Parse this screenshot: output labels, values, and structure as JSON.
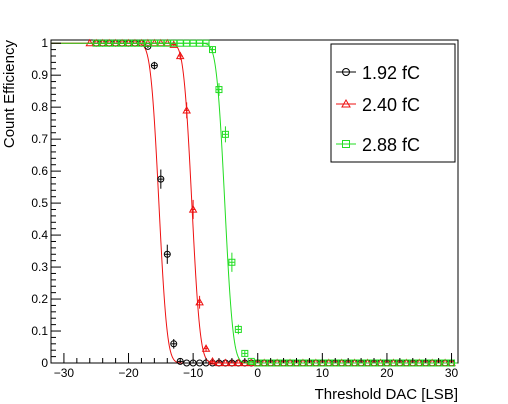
{
  "chart_data": {
    "type": "scatter",
    "xlabel": "Threshold DAC [LSB]",
    "ylabel": "Count Efficiency",
    "xlim": [
      -32,
      31
    ],
    "ylim": [
      0,
      1.01
    ],
    "xticks": [
      -30,
      -20,
      -10,
      0,
      10,
      20,
      30
    ],
    "yticks": [
      0,
      0.1,
      0.2,
      0.3,
      0.4,
      0.5,
      0.6,
      0.7,
      0.8,
      0.9,
      1
    ],
    "ytick_labels": [
      "0",
      "0.1",
      "0.2",
      "0.3",
      "0.4",
      "0.5",
      "0.6",
      "0.7",
      "0.8",
      "0.9",
      "1"
    ],
    "grid": false,
    "legend_position": "top-right",
    "series": [
      {
        "name": "1.92 fC",
        "color": "#000000",
        "marker": "circle",
        "curve_color": "#ee1111",
        "fit": {
          "mu": -15.3,
          "sigma": 1.0
        },
        "points": [
          {
            "x": -25,
            "y": 1.0,
            "err": 0
          },
          {
            "x": -24,
            "y": 1.0,
            "err": 0
          },
          {
            "x": -23,
            "y": 1.0,
            "err": 0
          },
          {
            "x": -22,
            "y": 1.0,
            "err": 0
          },
          {
            "x": -21,
            "y": 1.0,
            "err": 0
          },
          {
            "x": -20,
            "y": 1.0,
            "err": 0
          },
          {
            "x": -19,
            "y": 1.0,
            "err": 0
          },
          {
            "x": -18,
            "y": 1.0,
            "err": 0
          },
          {
            "x": -17,
            "y": 0.99,
            "err": 0.005
          },
          {
            "x": -16,
            "y": 0.93,
            "err": 0.012
          },
          {
            "x": -15,
            "y": 0.575,
            "err": 0.03
          },
          {
            "x": -14,
            "y": 0.34,
            "err": 0.03
          },
          {
            "x": -13,
            "y": 0.06,
            "err": 0.015
          },
          {
            "x": -12,
            "y": 0.005,
            "err": 0.003
          },
          {
            "x": -11,
            "y": 0.0,
            "err": 0
          },
          {
            "x": -10,
            "y": 0.0,
            "err": 0
          },
          {
            "x": -9,
            "y": 0.0,
            "err": 0
          },
          {
            "x": -8,
            "y": 0.0,
            "err": 0
          },
          {
            "x": -7,
            "y": 0.0,
            "err": 0
          },
          {
            "x": -6,
            "y": 0.0,
            "err": 0
          },
          {
            "x": -5,
            "y": 0.0,
            "err": 0
          },
          {
            "x": -4,
            "y": 0.0,
            "err": 0
          },
          {
            "x": -3,
            "y": 0.0,
            "err": 0
          },
          {
            "x": -2,
            "y": 0.0,
            "err": 0
          },
          {
            "x": -1,
            "y": 0.0,
            "err": 0
          },
          {
            "x": 0,
            "y": 0.0,
            "err": 0
          },
          {
            "x": 1,
            "y": 0.0,
            "err": 0
          },
          {
            "x": 2,
            "y": 0.0,
            "err": 0
          },
          {
            "x": 3,
            "y": 0.0,
            "err": 0
          },
          {
            "x": 4,
            "y": 0.0,
            "err": 0
          },
          {
            "x": 5,
            "y": 0.0,
            "err": 0
          },
          {
            "x": 6,
            "y": 0.0,
            "err": 0
          },
          {
            "x": 7,
            "y": 0.0,
            "err": 0
          },
          {
            "x": 8,
            "y": 0.0,
            "err": 0
          },
          {
            "x": 9,
            "y": 0.0,
            "err": 0
          },
          {
            "x": 10,
            "y": 0.0,
            "err": 0
          },
          {
            "x": 11,
            "y": 0.0,
            "err": 0
          },
          {
            "x": 12,
            "y": 0.0,
            "err": 0
          },
          {
            "x": 13,
            "y": 0.0,
            "err": 0
          },
          {
            "x": 14,
            "y": 0.0,
            "err": 0
          },
          {
            "x": 15,
            "y": 0.0,
            "err": 0
          },
          {
            "x": 16,
            "y": 0.0,
            "err": 0
          },
          {
            "x": 17,
            "y": 0.0,
            "err": 0
          },
          {
            "x": 18,
            "y": 0.0,
            "err": 0
          },
          {
            "x": 19,
            "y": 0.0,
            "err": 0
          },
          {
            "x": 20,
            "y": 0.0,
            "err": 0
          },
          {
            "x": 21,
            "y": 0.0,
            "err": 0
          },
          {
            "x": 22,
            "y": 0.0,
            "err": 0
          },
          {
            "x": 23,
            "y": 0.0,
            "err": 0
          },
          {
            "x": 24,
            "y": 0.0,
            "err": 0
          },
          {
            "x": 25,
            "y": 0.0,
            "err": 0
          },
          {
            "x": 26,
            "y": 0.0,
            "err": 0
          },
          {
            "x": 27,
            "y": 0.0,
            "err": 0
          },
          {
            "x": 28,
            "y": 0.0,
            "err": 0
          },
          {
            "x": 29,
            "y": 0.0,
            "err": 0
          },
          {
            "x": 30,
            "y": 0.0,
            "err": 0
          }
        ]
      },
      {
        "name": "2.40 fC",
        "color": "#ee1111",
        "marker": "triangle",
        "curve_color": "#ee1111",
        "fit": {
          "mu": -10.2,
          "sigma": 1.0
        },
        "points": [
          {
            "x": -26,
            "y": 1.0,
            "err": 0
          },
          {
            "x": -25,
            "y": 1.0,
            "err": 0
          },
          {
            "x": -24,
            "y": 1.0,
            "err": 0
          },
          {
            "x": -23,
            "y": 1.0,
            "err": 0
          },
          {
            "x": -22,
            "y": 1.0,
            "err": 0
          },
          {
            "x": -21,
            "y": 1.0,
            "err": 0
          },
          {
            "x": -20,
            "y": 1.0,
            "err": 0
          },
          {
            "x": -19,
            "y": 1.0,
            "err": 0
          },
          {
            "x": -18,
            "y": 1.0,
            "err": 0
          },
          {
            "x": -17,
            "y": 1.0,
            "err": 0
          },
          {
            "x": -16,
            "y": 1.0,
            "err": 0
          },
          {
            "x": -15,
            "y": 1.0,
            "err": 0
          },
          {
            "x": -14,
            "y": 1.0,
            "err": 0
          },
          {
            "x": -13,
            "y": 0.995,
            "err": 0.004
          },
          {
            "x": -12,
            "y": 0.96,
            "err": 0.012
          },
          {
            "x": -11,
            "y": 0.79,
            "err": 0.025
          },
          {
            "x": -10,
            "y": 0.48,
            "err": 0.03
          },
          {
            "x": -9,
            "y": 0.19,
            "err": 0.02
          },
          {
            "x": -8,
            "y": 0.045,
            "err": 0.01
          },
          {
            "x": -7,
            "y": 0.005,
            "err": 0.003
          },
          {
            "x": -6,
            "y": 0.0,
            "err": 0
          },
          {
            "x": -5,
            "y": 0.0,
            "err": 0
          },
          {
            "x": -4,
            "y": 0.0,
            "err": 0
          },
          {
            "x": -3,
            "y": 0.0,
            "err": 0
          },
          {
            "x": -2,
            "y": 0.0,
            "err": 0
          },
          {
            "x": -1,
            "y": 0.0,
            "err": 0
          },
          {
            "x": 0,
            "y": 0.0,
            "err": 0
          },
          {
            "x": 1,
            "y": 0.0,
            "err": 0
          },
          {
            "x": 2,
            "y": 0.0,
            "err": 0
          },
          {
            "x": 3,
            "y": 0.0,
            "err": 0
          },
          {
            "x": 4,
            "y": 0.0,
            "err": 0
          },
          {
            "x": 5,
            "y": 0.0,
            "err": 0
          },
          {
            "x": 6,
            "y": 0.0,
            "err": 0
          },
          {
            "x": 7,
            "y": 0.0,
            "err": 0
          },
          {
            "x": 8,
            "y": 0.0,
            "err": 0
          },
          {
            "x": 9,
            "y": 0.0,
            "err": 0
          },
          {
            "x": 10,
            "y": 0.0,
            "err": 0
          },
          {
            "x": 11,
            "y": 0.0,
            "err": 0
          },
          {
            "x": 12,
            "y": 0.0,
            "err": 0
          },
          {
            "x": 13,
            "y": 0.0,
            "err": 0
          },
          {
            "x": 14,
            "y": 0.0,
            "err": 0
          },
          {
            "x": 15,
            "y": 0.0,
            "err": 0
          },
          {
            "x": 16,
            "y": 0.0,
            "err": 0
          },
          {
            "x": 17,
            "y": 0.0,
            "err": 0
          },
          {
            "x": 18,
            "y": 0.0,
            "err": 0
          },
          {
            "x": 19,
            "y": 0.0,
            "err": 0
          },
          {
            "x": 20,
            "y": 0.0,
            "err": 0
          },
          {
            "x": 21,
            "y": 0.0,
            "err": 0
          },
          {
            "x": 22,
            "y": 0.0,
            "err": 0
          },
          {
            "x": 23,
            "y": 0.0,
            "err": 0
          },
          {
            "x": 24,
            "y": 0.0,
            "err": 0
          },
          {
            "x": 25,
            "y": 0.0,
            "err": 0
          },
          {
            "x": 26,
            "y": 0.0,
            "err": 0
          },
          {
            "x": 27,
            "y": 0.0,
            "err": 0
          },
          {
            "x": 28,
            "y": 0.0,
            "err": 0
          },
          {
            "x": 29,
            "y": 0.0,
            "err": 0
          },
          {
            "x": 30,
            "y": 0.0,
            "err": 0
          }
        ]
      },
      {
        "name": "2.88 fC",
        "color": "#22dd22",
        "marker": "square",
        "curve_color": "#22dd22",
        "fit": {
          "mu": -5.1,
          "sigma": 1.0
        },
        "points": [
          {
            "x": -25,
            "y": 1.0,
            "err": 0
          },
          {
            "x": -24,
            "y": 1.0,
            "err": 0
          },
          {
            "x": -23,
            "y": 1.0,
            "err": 0
          },
          {
            "x": -22,
            "y": 1.0,
            "err": 0
          },
          {
            "x": -21,
            "y": 1.0,
            "err": 0
          },
          {
            "x": -20,
            "y": 1.0,
            "err": 0
          },
          {
            "x": -19,
            "y": 1.0,
            "err": 0
          },
          {
            "x": -18,
            "y": 1.0,
            "err": 0
          },
          {
            "x": -17,
            "y": 1.0,
            "err": 0
          },
          {
            "x": -16,
            "y": 1.0,
            "err": 0
          },
          {
            "x": -15,
            "y": 1.0,
            "err": 0
          },
          {
            "x": -14,
            "y": 1.0,
            "err": 0
          },
          {
            "x": -13,
            "y": 1.0,
            "err": 0
          },
          {
            "x": -12,
            "y": 1.0,
            "err": 0
          },
          {
            "x": -11,
            "y": 1.0,
            "err": 0
          },
          {
            "x": -10,
            "y": 1.0,
            "err": 0
          },
          {
            "x": -9,
            "y": 1.0,
            "err": 0
          },
          {
            "x": -8,
            "y": 1.0,
            "err": 0
          },
          {
            "x": -7,
            "y": 0.98,
            "err": 0.008
          },
          {
            "x": -6,
            "y": 0.855,
            "err": 0.02
          },
          {
            "x": -5,
            "y": 0.715,
            "err": 0.025
          },
          {
            "x": -4,
            "y": 0.315,
            "err": 0.03
          },
          {
            "x": -3,
            "y": 0.105,
            "err": 0.015
          },
          {
            "x": -2,
            "y": 0.03,
            "err": 0.008
          },
          {
            "x": -1,
            "y": 0.005,
            "err": 0.003
          },
          {
            "x": 0,
            "y": 0.0,
            "err": 0
          },
          {
            "x": 1,
            "y": 0.0,
            "err": 0
          },
          {
            "x": 2,
            "y": 0.0,
            "err": 0
          },
          {
            "x": 3,
            "y": 0.0,
            "err": 0
          },
          {
            "x": 4,
            "y": 0.0,
            "err": 0
          },
          {
            "x": 5,
            "y": 0.0,
            "err": 0
          },
          {
            "x": 6,
            "y": 0.0,
            "err": 0
          },
          {
            "x": 7,
            "y": 0.0,
            "err": 0
          },
          {
            "x": 8,
            "y": 0.0,
            "err": 0
          },
          {
            "x": 9,
            "y": 0.0,
            "err": 0
          },
          {
            "x": 10,
            "y": 0.0,
            "err": 0
          },
          {
            "x": 11,
            "y": 0.0,
            "err": 0
          },
          {
            "x": 12,
            "y": 0.0,
            "err": 0
          },
          {
            "x": 13,
            "y": 0.0,
            "err": 0
          },
          {
            "x": 14,
            "y": 0.0,
            "err": 0
          },
          {
            "x": 15,
            "y": 0.0,
            "err": 0
          },
          {
            "x": 16,
            "y": 0.0,
            "err": 0
          },
          {
            "x": 17,
            "y": 0.0,
            "err": 0
          },
          {
            "x": 18,
            "y": 0.0,
            "err": 0
          },
          {
            "x": 19,
            "y": 0.0,
            "err": 0
          },
          {
            "x": 20,
            "y": 0.0,
            "err": 0
          },
          {
            "x": 21,
            "y": 0.0,
            "err": 0
          },
          {
            "x": 22,
            "y": 0.0,
            "err": 0
          },
          {
            "x": 23,
            "y": 0.0,
            "err": 0
          },
          {
            "x": 24,
            "y": 0.0,
            "err": 0
          },
          {
            "x": 25,
            "y": 0.0,
            "err": 0
          },
          {
            "x": 26,
            "y": 0.0,
            "err": 0
          },
          {
            "x": 27,
            "y": 0.0,
            "err": 0
          },
          {
            "x": 28,
            "y": 0.0,
            "err": 0
          },
          {
            "x": 29,
            "y": 0.0,
            "err": 0
          },
          {
            "x": 30,
            "y": 0.0,
            "err": 0
          }
        ]
      }
    ]
  }
}
